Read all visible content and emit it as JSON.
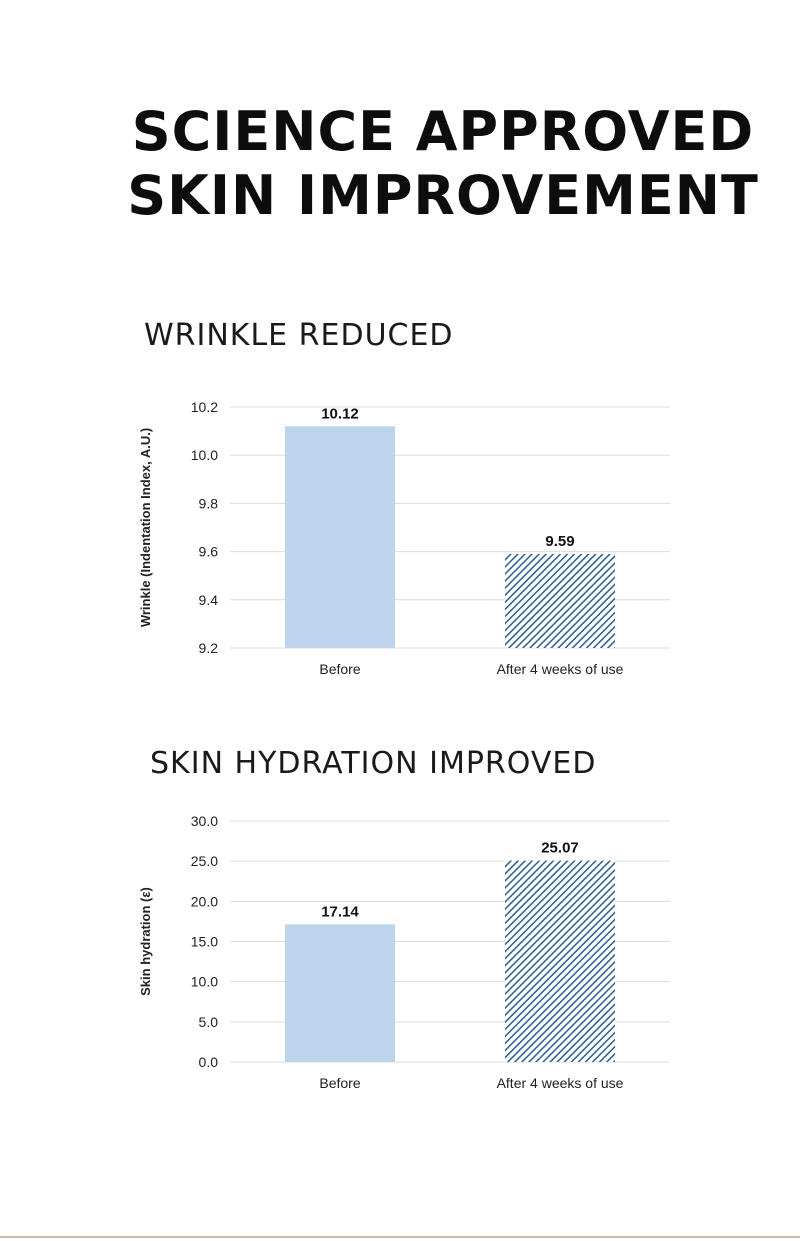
{
  "headline": {
    "line1": "SCIENCE APPROVED",
    "line2": "SKIN IMPROVEMENT"
  },
  "sections": {
    "wrinkle": {
      "title": "WRINKLE REDUCED"
    },
    "hydration": {
      "title": "SKIN HYDRATION IMPROVED"
    }
  },
  "colors": {
    "before_bar": "#bcd4ec",
    "after_hatch": "#2d5e90",
    "after_bg": "#ffffff"
  },
  "chart_data": [
    {
      "type": "bar",
      "categories": [
        "Before",
        "After 4 weeks of use"
      ],
      "values": [
        10.12,
        9.59
      ],
      "value_labels": [
        "10.12",
        "9.59"
      ],
      "title": "WRINKLE REDUCED",
      "xlabel": "",
      "ylabel": "Wrinkle (Indentation Index, A.U.)",
      "ylim": [
        9.2,
        10.2
      ],
      "yticks": [
        "9.2",
        "9.4",
        "9.6",
        "9.8",
        "10.0",
        "10.2"
      ],
      "bar_styles": [
        "solid",
        "hatched"
      ],
      "grid": true
    },
    {
      "type": "bar",
      "categories": [
        "Before",
        "After 4 weeks of use"
      ],
      "values": [
        17.14,
        25.07
      ],
      "value_labels": [
        "17.14",
        "25.07"
      ],
      "title": "SKIN HYDRATION IMPROVED",
      "xlabel": "",
      "ylabel": "Skin hydration (ε)",
      "ylim": [
        0,
        30
      ],
      "yticks": [
        "0.0",
        "5.0",
        "10.0",
        "15.0",
        "20.0",
        "25.0",
        "30.0"
      ],
      "bar_styles": [
        "solid",
        "hatched"
      ],
      "grid": true
    }
  ]
}
